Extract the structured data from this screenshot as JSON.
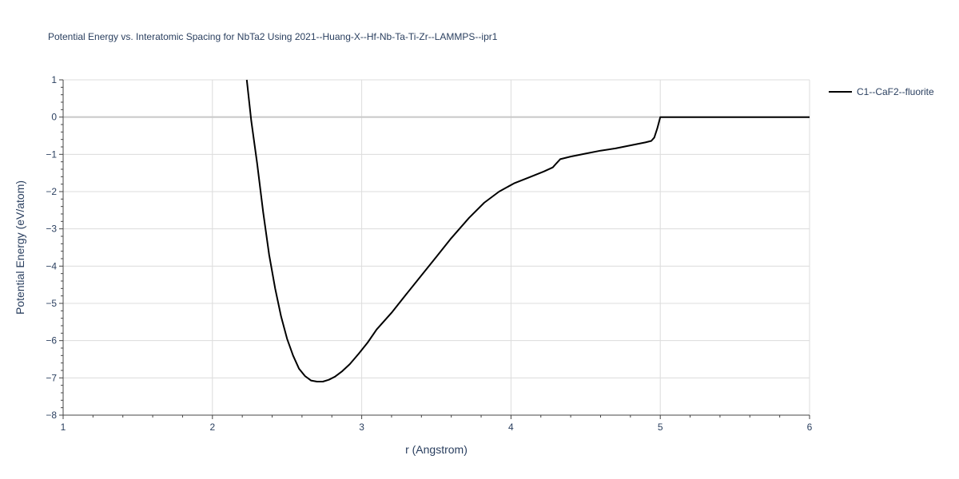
{
  "chart_data": {
    "type": "line",
    "title": "Potential Energy vs. Interatomic Spacing for NbTa2 Using 2021--Huang-X--Hf-Nb-Ta-Ti-Zr--LAMMPS--ipr1",
    "xlabel": "r (Angstrom)",
    "ylabel": "Potential Energy (eV/atom)",
    "xlim": [
      1,
      6
    ],
    "ylim": [
      -8,
      1
    ],
    "x_ticks": [
      1,
      2,
      3,
      4,
      5,
      6
    ],
    "x_tick_labels": [
      "1",
      "2",
      "3",
      "4",
      "5",
      "6"
    ],
    "y_ticks": [
      1,
      0,
      -1,
      -2,
      -3,
      -4,
      -5,
      -6,
      -7,
      -8
    ],
    "y_tick_labels": [
      "1",
      "0",
      "−1",
      "−2",
      "−3",
      "−4",
      "−5",
      "−6",
      "−7",
      "−8"
    ],
    "grid": true,
    "legend_position": "top-right",
    "series": [
      {
        "name": "C1--CaF2--fluorite",
        "color": "#000000",
        "x": [
          2.23,
          2.26,
          2.3,
          2.34,
          2.38,
          2.42,
          2.46,
          2.5,
          2.54,
          2.58,
          2.62,
          2.66,
          2.7,
          2.74,
          2.78,
          2.82,
          2.87,
          2.92,
          2.98,
          3.04,
          3.1,
          3.2,
          3.3,
          3.4,
          3.5,
          3.6,
          3.72,
          3.82,
          3.92,
          4.02,
          4.12,
          4.22,
          4.28,
          4.3,
          4.33,
          4.4,
          4.5,
          4.6,
          4.7,
          4.8,
          4.9,
          4.94,
          4.96,
          4.98,
          5.0,
          5.2,
          5.4,
          5.6,
          5.8,
          6.0
        ],
        "y": [
          1.0,
          -0.1,
          -1.25,
          -2.55,
          -3.7,
          -4.6,
          -5.35,
          -5.95,
          -6.4,
          -6.75,
          -6.95,
          -7.07,
          -7.1,
          -7.1,
          -7.05,
          -6.97,
          -6.82,
          -6.63,
          -6.35,
          -6.05,
          -5.7,
          -5.25,
          -4.75,
          -4.25,
          -3.75,
          -3.25,
          -2.7,
          -2.3,
          -2.0,
          -1.78,
          -1.62,
          -1.46,
          -1.35,
          -1.26,
          -1.13,
          -1.06,
          -0.98,
          -0.9,
          -0.84,
          -0.76,
          -0.68,
          -0.64,
          -0.55,
          -0.3,
          0.0,
          0.0,
          0.0,
          0.0,
          0.0,
          0.0
        ]
      }
    ]
  }
}
